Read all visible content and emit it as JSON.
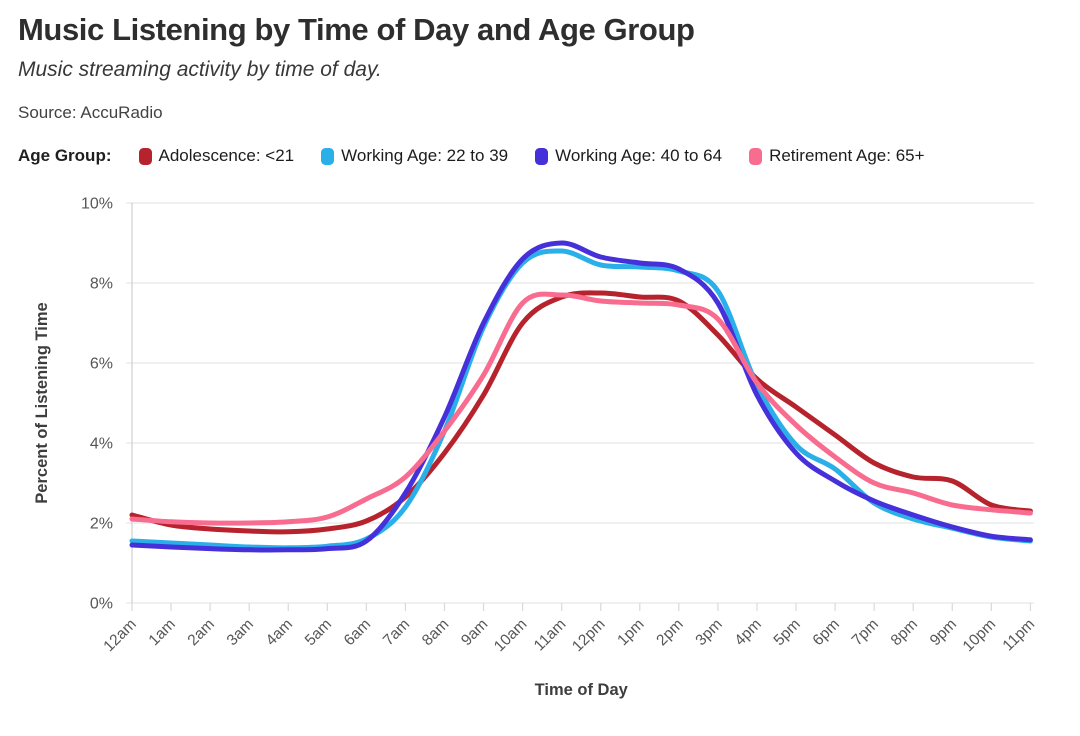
{
  "header": {
    "title": "Music Listening by Time of Day and Age Group",
    "subtitle": "Music streaming activity by time of day.",
    "source": "Source: AccuRadio"
  },
  "legend": {
    "label": "Age Group:"
  },
  "chart_data": {
    "type": "line",
    "title": "Music Listening by Time of Day and Age Group",
    "xlabel": "Time of Day",
    "ylabel": "Percent of Listening Time",
    "ylim": [
      0,
      10
    ],
    "yticks": [
      0,
      2,
      4,
      6,
      8,
      10
    ],
    "ytick_labels": [
      "0%",
      "2%",
      "4%",
      "6%",
      "8%",
      "10%"
    ],
    "grid": "horizontal",
    "legend_position": "top",
    "categories": [
      "12am",
      "1am",
      "2am",
      "3am",
      "4am",
      "5am",
      "6am",
      "7am",
      "8am",
      "9am",
      "10am",
      "11am",
      "12pm",
      "1pm",
      "2pm",
      "3pm",
      "4pm",
      "5pm",
      "6pm",
      "7pm",
      "8pm",
      "9pm",
      "10pm",
      "11pm"
    ],
    "series": [
      {
        "name": "Adolescence: <21",
        "color": "#b6232c",
        "values": [
          2.2,
          1.95,
          1.85,
          1.8,
          1.78,
          1.85,
          2.05,
          2.65,
          3.75,
          5.2,
          7.0,
          7.65,
          7.75,
          7.65,
          7.55,
          6.7,
          5.6,
          4.9,
          4.2,
          3.5,
          3.15,
          3.05,
          2.45,
          2.3
        ]
      },
      {
        "name": "Working Age: 22 to 39",
        "color": "#2aafe8",
        "values": [
          1.55,
          1.5,
          1.45,
          1.4,
          1.38,
          1.42,
          1.6,
          2.4,
          4.3,
          6.9,
          8.5,
          8.8,
          8.45,
          8.4,
          8.3,
          7.8,
          5.45,
          3.95,
          3.35,
          2.5,
          2.1,
          1.87,
          1.65,
          1.55
        ]
      },
      {
        "name": "Working Age: 40 to 64",
        "color": "#4630d9",
        "values": [
          1.45,
          1.4,
          1.36,
          1.33,
          1.33,
          1.36,
          1.55,
          2.75,
          4.65,
          7.0,
          8.6,
          9.0,
          8.65,
          8.5,
          8.35,
          7.5,
          5.2,
          3.75,
          3.05,
          2.55,
          2.2,
          1.9,
          1.67,
          1.58
        ]
      },
      {
        "name": "Retirement Age: 65+",
        "color": "#f76c8f",
        "values": [
          2.1,
          2.03,
          2.0,
          2.0,
          2.03,
          2.15,
          2.6,
          3.15,
          4.3,
          5.7,
          7.5,
          7.7,
          7.55,
          7.5,
          7.45,
          7.1,
          5.5,
          4.45,
          3.65,
          3.0,
          2.75,
          2.45,
          2.33,
          2.25
        ]
      }
    ],
    "style": {
      "grid_color": "#e7e7e7",
      "axis_color": "#cfcfcf",
      "tick_color": "#d9d9d9",
      "line_width": 5
    }
  }
}
